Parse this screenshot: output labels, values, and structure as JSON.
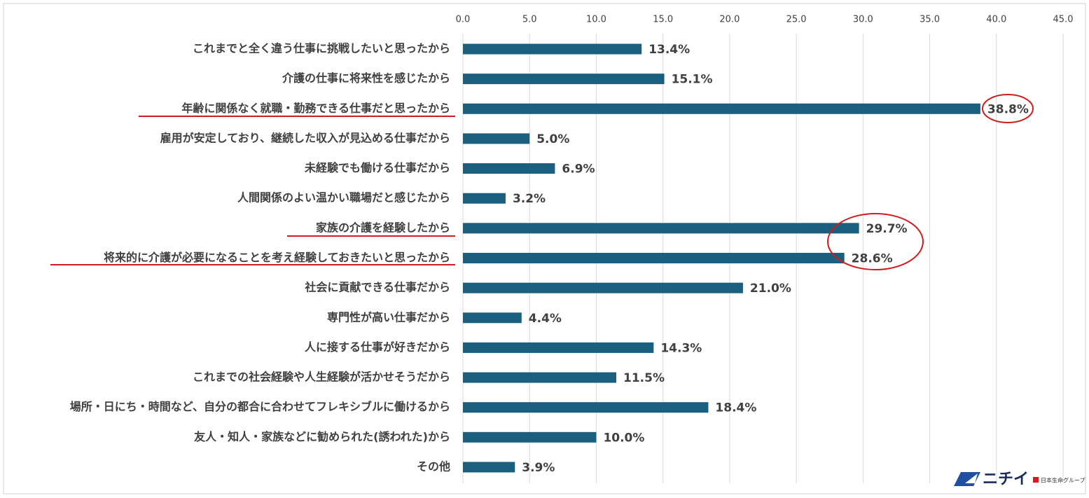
{
  "chart_data": {
    "type": "bar",
    "orientation": "horizontal",
    "categories": [
      "これまでと全く違う仕事に挑戦したいと思ったから",
      "介護の仕事に将来性を感じたから",
      "年齢に関係なく就職・勤務できる仕事だと思ったから",
      "雇用が安定しており、継続した収入が見込める仕事だから",
      "未経験でも働ける仕事だから",
      "人間関係のよい温かい職場だと感じたから",
      "家族の介護を経験したから",
      "将来的に介護が必要になることを考え経験しておきたいと思ったから",
      "社会に貢献できる仕事だから",
      "専門性が高い仕事だから",
      "人に接する仕事が好きだから",
      "これまでの社会経験や人生経験が活かせそうだから",
      "場所・日にち・時間など、自分の都合に合わせてフレキシブルに働けるから",
      "友人・知人・家族などに勧められた(誘われた)から",
      "その他"
    ],
    "values": [
      13.4,
      15.1,
      38.8,
      5.0,
      6.9,
      3.2,
      29.7,
      28.6,
      21.0,
      4.4,
      14.3,
      11.5,
      18.4,
      10.0,
      3.9
    ],
    "value_labels": [
      "13.4%",
      "15.1%",
      "38.8%",
      "5.0%",
      "6.9%",
      "3.2%",
      "29.7%",
      "28.6%",
      "21.0%",
      "4.4%",
      "14.3%",
      "11.5%",
      "18.4%",
      "10.0%",
      "3.9%"
    ],
    "color": "#1b5f7f",
    "xlim": [
      0,
      45
    ],
    "xticks": [
      {
        "value": 0,
        "label": "0.0"
      },
      {
        "value": 5,
        "label": "5.0"
      },
      {
        "value": 10,
        "label": "10.0"
      },
      {
        "value": 15,
        "label": "15.0"
      },
      {
        "value": 20,
        "label": "20.0"
      },
      {
        "value": 25,
        "label": "25.0"
      },
      {
        "value": 30,
        "label": "30.0"
      },
      {
        "value": 35,
        "label": "35.0"
      },
      {
        "value": 40,
        "label": "40.0"
      },
      {
        "value": 45,
        "label": "45.0"
      }
    ],
    "grid": true,
    "annotations": [
      "ニチイ",
      "日本生命グループ"
    ]
  }
}
